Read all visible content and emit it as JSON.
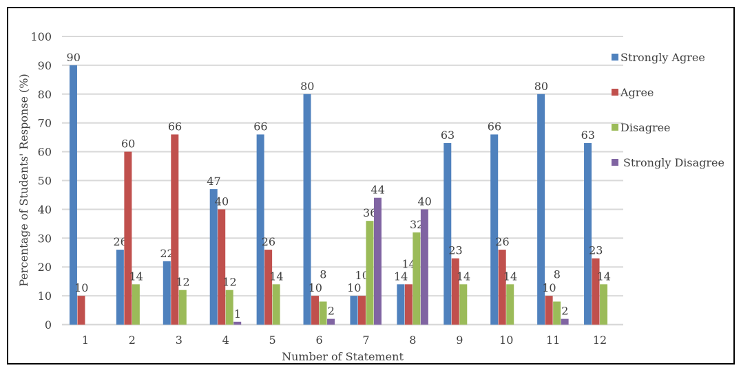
{
  "chart_data": {
    "type": "bar",
    "title": "",
    "xlabel": "Number of Statement",
    "ylabel": "Percentage of Students' Response (%)",
    "ylim": [
      0,
      100
    ],
    "yticks": [
      0,
      10,
      20,
      30,
      40,
      50,
      60,
      70,
      80,
      90,
      100
    ],
    "grid": true,
    "legend_position": "right",
    "categories": [
      "1",
      "2",
      "3",
      "4",
      "5",
      "6",
      "7",
      "8",
      "9",
      "10",
      "11",
      "12"
    ],
    "series": [
      {
        "name": "Strongly Agree",
        "color": "#4F81BD",
        "values": [
          90,
          26,
          22,
          47,
          66,
          80,
          10,
          14,
          63,
          66,
          80,
          63
        ]
      },
      {
        "name": "Agree",
        "color": "#C0504D",
        "values": [
          10,
          60,
          66,
          40,
          26,
          10,
          10,
          14,
          23,
          26,
          10,
          23
        ]
      },
      {
        "name": "Disagree",
        "color": "#9BBB59",
        "values": [
          0,
          14,
          12,
          12,
          14,
          8,
          36,
          32,
          14,
          14,
          8,
          14
        ]
      },
      {
        "name": "Strongly Disagree",
        "color": "#8064A2",
        "values": [
          0,
          0,
          0,
          1,
          0,
          2,
          44,
          40,
          0,
          0,
          2,
          0
        ]
      }
    ]
  }
}
